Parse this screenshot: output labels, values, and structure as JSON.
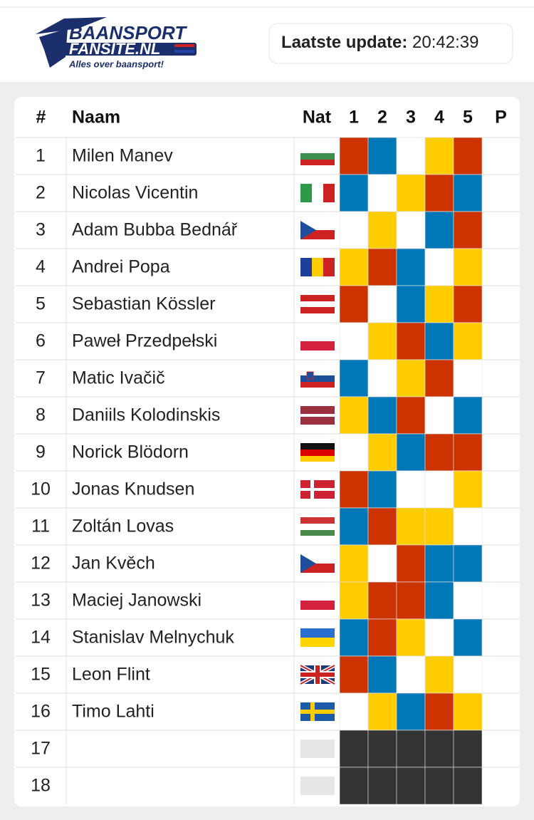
{
  "header": {
    "logo": {
      "line1": "BAANSPORT",
      "line2": "FANSITE.NL",
      "tagline": "Alles over baansport!"
    },
    "update_label": "Laatste update:",
    "update_time": "20:42:39"
  },
  "table": {
    "columns": [
      "#",
      "Naam",
      "Nat",
      "1",
      "2",
      "3",
      "4",
      "5",
      "P"
    ],
    "rows": [
      {
        "pos": 1,
        "name": "Milen Manev",
        "heats": [
          "#cc3300",
          "#0077b6",
          "#ffffff",
          "#ffcc00",
          "#cc3300"
        ]
      },
      {
        "pos": 2,
        "name": "Nicolas Vicentin",
        "heats": [
          "#0077b6",
          "#ffffff",
          "#ffcc00",
          "#cc3300",
          "#0077b6"
        ]
      },
      {
        "pos": 3,
        "name": "Adam Bubba Bednář",
        "heats": [
          "#ffffff",
          "#ffcc00",
          "#ffffff",
          "#0077b6",
          "#cc3300"
        ]
      },
      {
        "pos": 4,
        "name": "Andrei Popa",
        "heats": [
          "#ffcc00",
          "#cc3300",
          "#0077b6",
          "#ffffff",
          "#ffcc00"
        ]
      },
      {
        "pos": 5,
        "name": "Sebastian Kössler",
        "heats": [
          "#cc3300",
          "#ffffff",
          "#0077b6",
          "#ffcc00",
          "#cc3300"
        ]
      },
      {
        "pos": 6,
        "name": "Paweł Przedpełski",
        "heats": [
          "#ffffff",
          "#ffcc00",
          "#cc3300",
          "#0077b6",
          "#ffcc00"
        ]
      },
      {
        "pos": 7,
        "name": "Matic Ivačič",
        "heats": [
          "#0077b6",
          "#ffffff",
          "#ffcc00",
          "#cc3300",
          "#ffffff"
        ]
      },
      {
        "pos": 8,
        "name": "Daniils Kolodinskis",
        "heats": [
          "#ffcc00",
          "#0077b6",
          "#cc3300",
          "#ffffff",
          "#0077b6"
        ]
      },
      {
        "pos": 9,
        "name": "Norick Blödorn",
        "heats": [
          "#ffffff",
          "#ffcc00",
          "#0077b6",
          "#cc3300",
          "#cc3300"
        ]
      },
      {
        "pos": 10,
        "name": "Jonas Knudsen",
        "heats": [
          "#cc3300",
          "#0077b6",
          "#ffffff",
          "#ffffff",
          "#ffcc00"
        ]
      },
      {
        "pos": 11,
        "name": "Zoltán Lovas",
        "heats": [
          "#0077b6",
          "#cc3300",
          "#ffcc00",
          "#ffcc00",
          "#ffffff"
        ]
      },
      {
        "pos": 12,
        "name": "Jan Kvěch",
        "heats": [
          "#ffcc00",
          "#ffffff",
          "#cc3300",
          "#0077b6",
          "#0077b6"
        ]
      },
      {
        "pos": 13,
        "name": "Maciej Janowski",
        "heats": [
          "#ffcc00",
          "#cc3300",
          "#cc3300",
          "#0077b6",
          "#ffffff"
        ]
      },
      {
        "pos": 14,
        "name": "Stanislav Melnychuk",
        "heats": [
          "#0077b6",
          "#cc3300",
          "#ffcc00",
          "#ffffff",
          "#0077b6"
        ]
      },
      {
        "pos": 15,
        "name": "Leon Flint",
        "heats": [
          "#cc3300",
          "#0077b6",
          "#ffffff",
          "#ffcc00",
          "#ffffff"
        ]
      },
      {
        "pos": 16,
        "name": "Timo Lahti",
        "heats": [
          "#ffffff",
          "#ffcc00",
          "#0077b6",
          "#cc3300",
          "#ffcc00"
        ]
      },
      {
        "pos": 17,
        "name": null,
        "heats": [
          "#333333",
          "#333333",
          "#333333",
          "#333333",
          "#333333"
        ]
      },
      {
        "pos": 18,
        "name": null,
        "heats": [
          "#333333",
          "#333333",
          "#333333",
          "#333333",
          "#333333"
        ]
      }
    ]
  }
}
